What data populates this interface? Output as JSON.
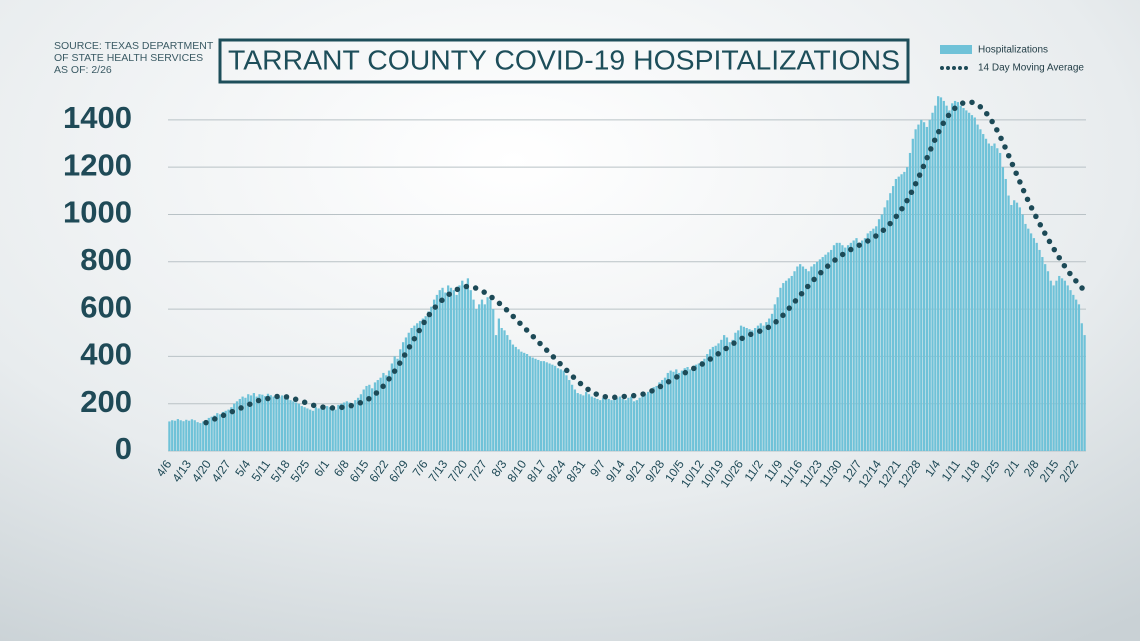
{
  "chart_data": {
    "type": "bar",
    "title": "TARRANT COUNTY COVID-19 HOSPITALIZATIONS",
    "source": [
      "SOURCE: TEXAS DEPARTMENT",
      "OF STATE HEALTH SERVICES",
      "AS OF: 2/26"
    ],
    "categories": [
      "4/6",
      null,
      null,
      null,
      null,
      null,
      null,
      "4/13",
      null,
      null,
      null,
      null,
      null,
      null,
      "4/20",
      null,
      null,
      null,
      null,
      null,
      null,
      "4/27",
      null,
      null,
      null,
      null,
      null,
      null,
      "5/4",
      null,
      null,
      null,
      null,
      null,
      null,
      "5/11",
      null,
      null,
      null,
      null,
      null,
      null,
      "5/18",
      null,
      null,
      null,
      null,
      null,
      null,
      "5/25",
      null,
      null,
      null,
      null,
      null,
      null,
      "6/1",
      null,
      null,
      null,
      null,
      null,
      null,
      "6/8",
      null,
      null,
      null,
      null,
      null,
      null,
      "6/15",
      null,
      null,
      null,
      null,
      null,
      null,
      "6/22",
      null,
      null,
      null,
      null,
      null,
      null,
      "6/29",
      null,
      null,
      null,
      null,
      null,
      null,
      "7/6",
      null,
      null,
      null,
      null,
      null,
      null,
      "7/13",
      null,
      null,
      null,
      null,
      null,
      null,
      "7/20",
      null,
      null,
      null,
      null,
      null,
      null,
      "7/27",
      null,
      null,
      null,
      null,
      null,
      null,
      "8/3",
      null,
      null,
      null,
      null,
      null,
      null,
      "8/10",
      null,
      null,
      null,
      null,
      null,
      null,
      "8/17",
      null,
      null,
      null,
      null,
      null,
      null,
      "8/24",
      null,
      null,
      null,
      null,
      null,
      null,
      "8/31",
      null,
      null,
      null,
      null,
      null,
      null,
      "9/7",
      null,
      null,
      null,
      null,
      null,
      null,
      "9/14",
      null,
      null,
      null,
      null,
      null,
      null,
      "9/21",
      null,
      null,
      null,
      null,
      null,
      null,
      "9/28",
      null,
      null,
      null,
      null,
      null,
      null,
      "10/5",
      null,
      null,
      null,
      null,
      null,
      null,
      "10/12",
      null,
      null,
      null,
      null,
      null,
      null,
      "10/19",
      null,
      null,
      null,
      null,
      null,
      null,
      "10/26",
      null,
      null,
      null,
      null,
      null,
      null,
      "11/2",
      null,
      null,
      null,
      null,
      null,
      null,
      "11/9",
      null,
      null,
      null,
      null,
      null,
      null,
      "11/16",
      null,
      null,
      null,
      null,
      null,
      null,
      "11/23",
      null,
      null,
      null,
      null,
      null,
      null,
      "11/30",
      null,
      null,
      null,
      null,
      null,
      null,
      "12/7",
      null,
      null,
      null,
      null,
      null,
      null,
      "12/14",
      null,
      null,
      null,
      null,
      null,
      null,
      "12/21",
      null,
      null,
      null,
      null,
      null,
      null,
      "12/28",
      null,
      null,
      null,
      null,
      null,
      null,
      "1/4",
      null,
      null,
      null,
      null,
      null,
      null,
      "1/11",
      null,
      null,
      null,
      null,
      null,
      null,
      "1/18",
      null,
      null,
      null,
      null,
      null,
      null,
      "1/25",
      null,
      null,
      null,
      null,
      null,
      null,
      "2/1",
      null,
      null,
      null,
      null,
      null,
      null,
      "2/8",
      null,
      null,
      null,
      null,
      null,
      null,
      "2/15",
      null,
      null,
      null,
      null,
      null,
      null,
      "2/22",
      null,
      null,
      null
    ],
    "series": [
      {
        "name": "Hospitalizations",
        "type": "bar",
        "color": "#6fc2d8",
        "values": [
          125,
          130,
          128,
          135,
          130,
          126,
          132,
          128,
          134,
          130,
          122,
          118,
          125,
          130,
          140,
          145,
          150,
          160,
          155,
          165,
          170,
          175,
          185,
          200,
          210,
          220,
          230,
          225,
          240,
          235,
          245,
          230,
          240,
          238,
          232,
          242,
          236,
          230,
          240,
          228,
          235,
          225,
          222,
          215,
          210,
          205,
          200,
          190,
          185,
          180,
          175,
          170,
          185,
          180,
          190,
          185,
          190,
          185,
          180,
          175,
          195,
          200,
          205,
          210,
          205,
          200,
          215,
          225,
          240,
          260,
          275,
          280,
          265,
          290,
          300,
          310,
          330,
          320,
          340,
          370,
          400,
          390,
          430,
          460,
          480,
          500,
          520,
          530,
          540,
          550,
          560,
          570,
          590,
          610,
          640,
          660,
          680,
          690,
          670,
          700,
          690,
          680,
          660,
          700,
          720,
          700,
          730,
          680,
          640,
          600,
          620,
          640,
          620,
          650,
          640,
          600,
          490,
          560,
          520,
          510,
          490,
          470,
          450,
          440,
          430,
          420,
          415,
          410,
          400,
          395,
          390,
          385,
          380,
          380,
          375,
          370,
          365,
          360,
          350,
          345,
          340,
          320,
          300,
          280,
          260,
          245,
          240,
          235,
          250,
          240,
          230,
          225,
          220,
          215,
          225,
          230,
          220,
          215,
          220,
          225,
          230,
          220,
          215,
          225,
          230,
          210,
          215,
          225,
          230,
          240,
          250,
          260,
          270,
          275,
          290,
          300,
          310,
          330,
          340,
          335,
          345,
          330,
          340,
          350,
          355,
          345,
          360,
          365,
          370,
          380,
          390,
          410,
          430,
          440,
          445,
          455,
          470,
          490,
          480,
          460,
          470,
          500,
          510,
          530,
          525,
          520,
          515,
          510,
          520,
          530,
          540,
          530,
          545,
          560,
          580,
          620,
          650,
          690,
          710,
          720,
          730,
          740,
          760,
          780,
          790,
          780,
          770,
          760,
          780,
          790,
          800,
          810,
          820,
          830,
          840,
          850,
          870,
          880,
          880,
          870,
          860,
          870,
          880,
          890,
          900,
          880,
          890,
          900,
          920,
          930,
          940,
          950,
          980,
          1000,
          1030,
          1060,
          1090,
          1120,
          1150,
          1160,
          1170,
          1180,
          1200,
          1260,
          1320,
          1360,
          1380,
          1400,
          1390,
          1370,
          1400,
          1430,
          1460,
          1500,
          1495,
          1480,
          1460,
          1440,
          1470,
          1480,
          1475,
          1460,
          1450,
          1440,
          1430,
          1420,
          1410,
          1380,
          1360,
          1340,
          1320,
          1300,
          1290,
          1300,
          1280,
          1260,
          1200,
          1150,
          1080,
          1040,
          1060,
          1050,
          1030,
          1000,
          960,
          940,
          920,
          900,
          880,
          850,
          820,
          790,
          760,
          720,
          700,
          720,
          740,
          730,
          720,
          700,
          680,
          660,
          640,
          620,
          540,
          490
        ]
      },
      {
        "name": "14 Day Moving Average",
        "type": "line",
        "color": "#1d4a57",
        "values": [
          null,
          null,
          null,
          null,
          null,
          null,
          null,
          null,
          null,
          null,
          null,
          null,
          null,
          120,
          125,
          130,
          135,
          140,
          145,
          150,
          155,
          160,
          165,
          170,
          175,
          180,
          185,
          190,
          195,
          200,
          205,
          210,
          215,
          218,
          220,
          222,
          225,
          228,
          230,
          232,
          232,
          230,
          228,
          225,
          222,
          218,
          214,
          210,
          206,
          202,
          198,
          194,
          190,
          188,
          186,
          185,
          184,
          183,
          182,
          182,
          183,
          184,
          186,
          188,
          190,
          193,
          196,
          200,
          205,
          210,
          215,
          222,
          230,
          240,
          250,
          262,
          275,
          290,
          305,
          320,
          338,
          356,
          375,
          395,
          415,
          435,
          455,
          475,
          495,
          515,
          535,
          555,
          572,
          588,
          603,
          616,
          628,
          640,
          650,
          660,
          668,
          675,
          682,
          688,
          692,
          695,
          696,
          695,
          692,
          688,
          683,
          677,
          670,
          662,
          654,
          645,
          636,
          626,
          616,
          605,
          594,
          582,
          570,
          558,
          546,
          534,
          522,
          510,
          498,
          486,
          474,
          462,
          450,
          438,
          426,
          414,
          402,
          390,
          378,
          366,
          354,
          342,
          330,
          318,
          306,
          295,
          285,
          275,
          266,
          258,
          250,
          244,
          238,
          234,
          231,
          229,
          228,
          227,
          227,
          228,
          229,
          230,
          231,
          232,
          233,
          234,
          236,
          238,
          240,
          243,
          247,
          252,
          258,
          264,
          270,
          277,
          284,
          291,
          298,
          305,
          312,
          318,
          324,
          330,
          336,
          342,
          348,
          354,
          360,
          366,
          373,
          380,
          388,
          396,
          404,
          412,
          420,
          428,
          436,
          444,
          452,
          460,
          467,
          474,
          480,
          486,
          491,
          496,
          500,
          504,
          508,
          512,
          518,
          525,
          533,
          542,
          552,
          563,
          575,
          588,
          602,
          616,
          630,
          644,
          658,
          672,
          686,
          700,
          713,
          726,
          738,
          750,
          762,
          773,
          784,
          794,
          804,
          813,
          822,
          830,
          838,
          845,
          852,
          858,
          864,
          870,
          876,
          882,
          888,
          895,
          902,
          910,
          918,
          928,
          938,
          950,
          962,
          976,
          990,
          1005,
          1022,
          1040,
          1060,
          1082,
          1105,
          1130,
          1155,
          1182,
          1210,
          1238,
          1266,
          1294,
          1320,
          1345,
          1368,
          1390,
          1408,
          1424,
          1438,
          1450,
          1460,
          1467,
          1472,
          1475,
          1476,
          1474,
          1470,
          1464,
          1455,
          1444,
          1430,
          1414,
          1396,
          1376,
          1354,
          1330,
          1305,
          1278,
          1250,
          1222,
          1194,
          1166,
          1138,
          1110,
          1083,
          1057,
          1032,
          1008,
          985,
          962,
          940,
          918,
          897,
          876,
          856,
          836,
          817,
          798,
          780,
          763,
          747,
          732,
          718,
          704,
          690,
          678
        ]
      }
    ],
    "ylim": [
      0,
      1560
    ],
    "yticks": [
      0,
      200,
      400,
      600,
      800,
      1000,
      1200,
      1400
    ],
    "grid": true,
    "legend": "top-right"
  }
}
